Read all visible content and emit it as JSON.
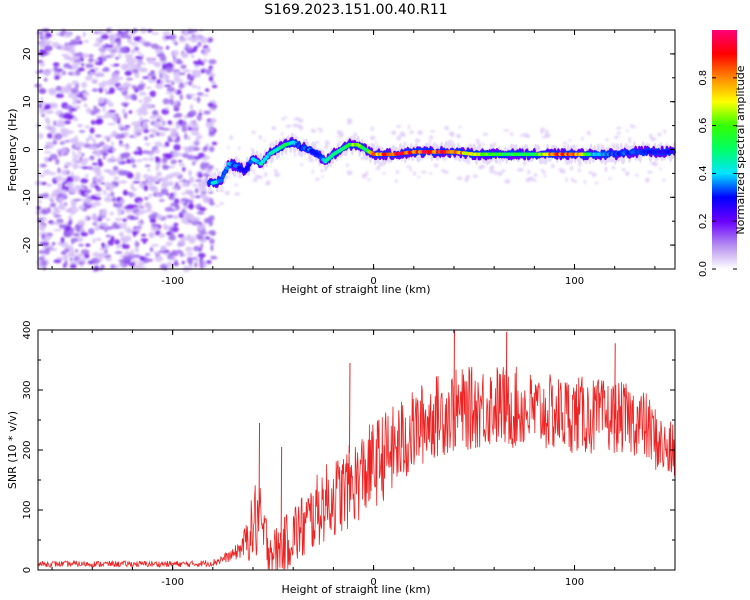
{
  "title": "S169.2023.151.00.40.R11",
  "colors": {
    "snr_line": "#ee2222",
    "spectrum_cloud": "#8a2be2",
    "axis": "#000000"
  },
  "chart_data": [
    {
      "type": "heatmap",
      "xlabel": "Height of straight line (km)",
      "ylabel": "Frequency (Hz)",
      "xlim": [
        -167,
        150
      ],
      "ylim": [
        -25,
        25
      ],
      "xticks": [
        -100,
        0,
        100
      ],
      "yticks": [
        -20,
        -10,
        0,
        10,
        20
      ],
      "x_tick_labels": [
        "-100",
        "0",
        "100"
      ],
      "y_tick_labels": [
        "-20",
        "-10",
        "0",
        "10",
        "20"
      ],
      "grid": false,
      "colorbar": {
        "label": "Normalized spectral amplitude",
        "range": [
          0,
          1
        ],
        "ticks": [
          0.0,
          0.2,
          0.4,
          0.6,
          0.8
        ],
        "tick_labels": [
          "0.0",
          "0.2",
          "0.4",
          "0.6",
          "0.8"
        ],
        "colormap": [
          "#ffffff",
          "#b48cf0",
          "#6a00ff",
          "#0000ff",
          "#00e5ff",
          "#00ff66",
          "#33ff00",
          "#ffff00",
          "#ff8800",
          "#ff0000",
          "#ff0077"
        ]
      },
      "signal_track": {
        "x": [
          -80,
          -76,
          -72,
          -68,
          -64,
          -60,
          -56,
          -52,
          -48,
          -44,
          -40,
          -36,
          -32,
          -28,
          -24,
          -20,
          -16,
          -12,
          -8,
          -4,
          0,
          10,
          20,
          30,
          40,
          50,
          60,
          70,
          80,
          90,
          100,
          110,
          120,
          130,
          140,
          148
        ],
        "freq": [
          -7,
          -6.5,
          -3,
          -3.5,
          -4.5,
          -2,
          -3,
          -1,
          0,
          1,
          1.5,
          0.5,
          0,
          -1,
          -2.5,
          -1,
          0,
          1,
          1,
          0,
          -1,
          -1,
          -0.5,
          -0.5,
          -0.5,
          -1,
          -1,
          -1,
          -1,
          -1,
          -1,
          -1,
          -1,
          -0.5,
          -0.5,
          -0.5
        ],
        "amplitude": [
          0.45,
          0.35,
          0.4,
          0.35,
          0.3,
          0.4,
          0.45,
          0.45,
          0.5,
          0.55,
          0.4,
          0.35,
          0.35,
          0.3,
          0.45,
          0.5,
          0.55,
          0.6,
          0.75,
          0.5,
          0.85,
          0.95,
          0.95,
          0.95,
          0.95,
          0.7,
          0.6,
          0.6,
          0.55,
          0.9,
          0.9,
          0.4,
          0.35,
          0.35,
          0.3,
          0.3
        ]
      }
    },
    {
      "type": "line",
      "xlabel": "Height of straight line (km)",
      "ylabel": "SNR (10 * v/v)",
      "xlim": [
        -167,
        150
      ],
      "ylim": [
        0,
        400
      ],
      "xticks": [
        -100,
        0,
        100
      ],
      "yticks": [
        0,
        100,
        200,
        300,
        400
      ],
      "x_tick_labels": [
        "-100",
        "0",
        "100"
      ],
      "y_tick_labels": [
        "0",
        "100",
        "200",
        "300",
        "400"
      ],
      "grid": false,
      "series": [
        {
          "x": [
            -167,
            -150,
            -130,
            -110,
            -90,
            -80,
            -70,
            -65,
            -60,
            -58,
            -55,
            -50,
            -45,
            -40,
            -35,
            -30,
            -25,
            -20,
            -15,
            -10,
            -5,
            0,
            5,
            10,
            15,
            20,
            25,
            30,
            35,
            40,
            50,
            60,
            70,
            80,
            90,
            100,
            110,
            120,
            130,
            135,
            140,
            145,
            150
          ],
          "y": [
            10,
            10,
            10,
            10,
            10,
            12,
            25,
            40,
            70,
            90,
            60,
            30,
            40,
            60,
            70,
            90,
            110,
            120,
            130,
            145,
            160,
            175,
            190,
            200,
            215,
            230,
            245,
            255,
            260,
            265,
            270,
            275,
            270,
            265,
            260,
            260,
            255,
            255,
            250,
            240,
            220,
            200,
            195
          ],
          "spread": [
            5,
            5,
            5,
            5,
            5,
            6,
            10,
            20,
            60,
            80,
            50,
            40,
            45,
            55,
            60,
            60,
            65,
            65,
            70,
            70,
            75,
            75,
            75,
            75,
            75,
            70,
            70,
            70,
            70,
            70,
            70,
            70,
            70,
            65,
            65,
            65,
            65,
            60,
            60,
            60,
            55,
            50,
            50
          ]
        }
      ],
      "spikes": [
        {
          "x": -57,
          "y": 245
        },
        {
          "x": -46,
          "y": 205
        },
        {
          "x": -12,
          "y": 345
        },
        {
          "x": 40,
          "y": 400
        },
        {
          "x": 66,
          "y": 397
        },
        {
          "x": 120,
          "y": 378
        }
      ]
    }
  ]
}
